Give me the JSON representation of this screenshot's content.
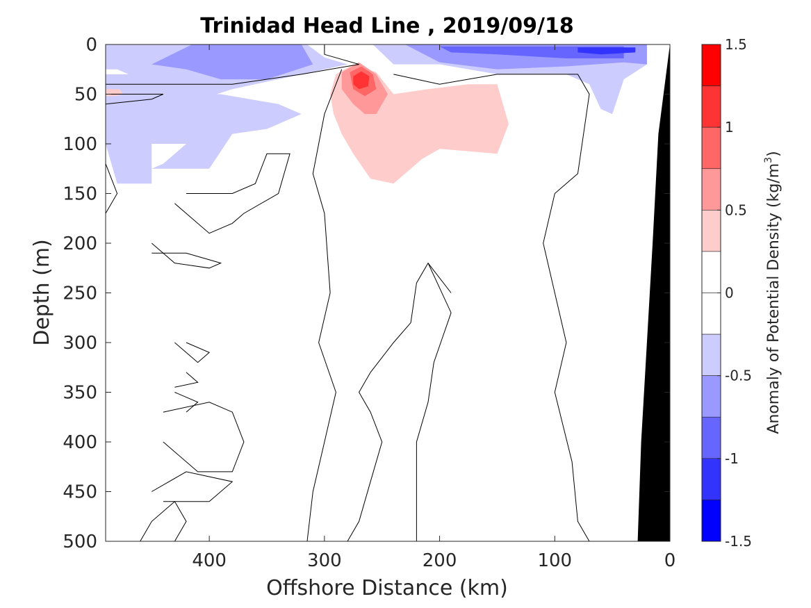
{
  "chart_data": {
    "type": "heatmap",
    "title": "Trinidad Head Line , 2019/09/18",
    "xlabel": "Offshore Distance (km)",
    "ylabel": "Depth (m)",
    "xlim": [
      490,
      0
    ],
    "ylim": [
      0,
      500
    ],
    "x_reversed": true,
    "y_reversed": true,
    "x_ticks": [
      "400",
      "300",
      "200",
      "100",
      "0"
    ],
    "y_ticks": [
      "0",
      "50",
      "100",
      "150",
      "200",
      "250",
      "300",
      "350",
      "400",
      "450",
      "500"
    ],
    "colorbar": {
      "label": "Anomaly of Potential Density (kg/m",
      "label_superscript": "3",
      "label_suffix": ")",
      "range": [
        -1.5,
        1.5
      ],
      "tick_values": [
        1.5,
        1,
        0.5,
        0,
        -0.5,
        -1,
        -1.5
      ],
      "tick_labels": [
        "1.5",
        "1",
        "0.5",
        "0",
        "-0.5",
        "-1",
        "-1.5"
      ],
      "levels": [
        {
          "from": 1.25,
          "to": 1.5,
          "color": "#ff0000"
        },
        {
          "from": 1.0,
          "to": 1.25,
          "color": "#ff3333"
        },
        {
          "from": 0.75,
          "to": 1.0,
          "color": "#ff6666"
        },
        {
          "from": 0.5,
          "to": 0.75,
          "color": "#ff9999"
        },
        {
          "from": 0.25,
          "to": 0.5,
          "color": "#ffcccc"
        },
        {
          "from": 0.0,
          "to": 0.25,
          "color": "#ffffff"
        },
        {
          "from": -0.25,
          "to": 0.0,
          "color": "#ffffff"
        },
        {
          "from": -0.5,
          "to": -0.25,
          "color": "#ccccff"
        },
        {
          "from": -0.75,
          "to": -0.5,
          "color": "#9999ff"
        },
        {
          "from": -1.0,
          "to": -0.75,
          "color": "#6666ff"
        },
        {
          "from": -1.25,
          "to": -1.0,
          "color": "#3333ff"
        },
        {
          "from": -1.5,
          "to": -1.25,
          "color": "#0000ff"
        }
      ]
    },
    "filled_regions": [
      {
        "name": "surface-negative-anomaly",
        "level": -0.5,
        "color": "#ccccff",
        "points": [
          [
            490,
            0
          ],
          [
            315,
            0
          ],
          [
            300,
            13
          ],
          [
            280,
            20
          ],
          [
            380,
            45
          ],
          [
            420,
            60
          ],
          [
            390,
            80
          ],
          [
            420,
            100
          ],
          [
            450,
            100
          ],
          [
            450,
            140
          ],
          [
            480,
            140
          ],
          [
            490,
            100
          ],
          [
            490,
            30
          ],
          [
            470,
            30
          ],
          [
            480,
            25
          ],
          [
            490,
            25
          ]
        ]
      },
      {
        "name": "subsurface-negative-anomaly",
        "level": -0.5,
        "color": "#ccccff",
        "points": [
          [
            490,
            60
          ],
          [
            440,
            60
          ],
          [
            420,
            100
          ],
          [
            440,
            120
          ],
          [
            450,
            125
          ],
          [
            400,
            125
          ],
          [
            380,
            90
          ],
          [
            350,
            85
          ],
          [
            320,
            70
          ],
          [
            340,
            60
          ],
          [
            390,
            50
          ],
          [
            490,
            50
          ]
        ]
      },
      {
        "name": "offshore-moderate-negative",
        "level": -0.75,
        "color": "#9999ff",
        "points": [
          [
            415,
            0
          ],
          [
            320,
            0
          ],
          [
            310,
            20
          ],
          [
            350,
            35
          ],
          [
            390,
            35
          ],
          [
            420,
            25
          ],
          [
            450,
            20
          ]
        ]
      },
      {
        "name": "nearshore-surface-negative",
        "level": -0.5,
        "color": "#ccccff",
        "points": [
          [
            258,
            0
          ],
          [
            20,
            0
          ],
          [
            20,
            20
          ],
          [
            40,
            35
          ],
          [
            50,
            70
          ],
          [
            60,
            65
          ],
          [
            70,
            40
          ],
          [
            90,
            30
          ],
          [
            150,
            30
          ],
          [
            200,
            20
          ],
          [
            240,
            20
          ]
        ]
      },
      {
        "name": "nearshore-moderate-negative",
        "level": -0.75,
        "color": "#9999ff",
        "points": [
          [
            230,
            0
          ],
          [
            20,
            0
          ],
          [
            20,
            20
          ],
          [
            40,
            18
          ],
          [
            90,
            22
          ],
          [
            150,
            25
          ],
          [
            200,
            18
          ]
        ]
      },
      {
        "name": "nearshore-strong-negative",
        "level": -1.0,
        "color": "#6666ff",
        "points": [
          [
            200,
            2
          ],
          [
            40,
            2
          ],
          [
            40,
            14
          ],
          [
            90,
            14
          ],
          [
            150,
            10
          ],
          [
            190,
            8
          ]
        ]
      },
      {
        "name": "nearshore-very-strong-negative",
        "level": -1.25,
        "color": "#3333ff",
        "points": [
          [
            80,
            3
          ],
          [
            30,
            3
          ],
          [
            30,
            8
          ],
          [
            60,
            10
          ],
          [
            80,
            8
          ]
        ]
      },
      {
        "name": "subsurface-positive-anomaly",
        "level": 0.5,
        "color": "#ffcccc",
        "points": [
          [
            290,
            30
          ],
          [
            275,
            20
          ],
          [
            255,
            28
          ],
          [
            240,
            50
          ],
          [
            210,
            45
          ],
          [
            175,
            40
          ],
          [
            150,
            40
          ],
          [
            140,
            80
          ],
          [
            150,
            110
          ],
          [
            200,
            105
          ],
          [
            215,
            115
          ],
          [
            240,
            140
          ],
          [
            260,
            135
          ],
          [
            275,
            110
          ],
          [
            285,
            90
          ],
          [
            292,
            70
          ],
          [
            295,
            50
          ]
        ]
      },
      {
        "name": "core-positive-anomaly",
        "level": 0.75,
        "color": "#ff9999",
        "points": [
          [
            285,
            28
          ],
          [
            270,
            18
          ],
          [
            255,
            30
          ],
          [
            245,
            50
          ],
          [
            255,
            70
          ],
          [
            265,
            70
          ],
          [
            275,
            60
          ],
          [
            285,
            45
          ]
        ]
      },
      {
        "name": "peak-positive-anomaly",
        "level": 1.0,
        "color": "#ff6666",
        "points": [
          [
            278,
            28
          ],
          [
            268,
            22
          ],
          [
            258,
            30
          ],
          [
            255,
            45
          ],
          [
            265,
            52
          ],
          [
            275,
            45
          ]
        ]
      },
      {
        "name": "peak-core-anomaly",
        "level": 1.25,
        "color": "#ff3333",
        "points": [
          [
            275,
            32
          ],
          [
            268,
            27
          ],
          [
            261,
            32
          ],
          [
            262,
            42
          ],
          [
            270,
            45
          ],
          [
            275,
            40
          ]
        ]
      },
      {
        "name": "offshore-small-positive",
        "level": 0.5,
        "color": "#ffcccc",
        "points": [
          [
            490,
            45
          ],
          [
            478,
            45
          ],
          [
            475,
            50
          ],
          [
            482,
            52
          ],
          [
            490,
            52
          ]
        ]
      }
    ],
    "contour_lines": [
      {
        "name": "zero-contour-1",
        "points": [
          [
            300,
            0
          ],
          [
            300,
            10
          ],
          [
            270,
            20
          ],
          [
            320,
            30
          ],
          [
            380,
            40
          ],
          [
            420,
            40
          ],
          [
            490,
            40
          ]
        ]
      },
      {
        "name": "zero-contour-2",
        "points": [
          [
            490,
            50
          ],
          [
            440,
            50
          ],
          [
            450,
            55
          ],
          [
            490,
            60
          ]
        ]
      },
      {
        "name": "zero-contour-3",
        "points": [
          [
            490,
            120
          ],
          [
            480,
            150
          ],
          [
            490,
            170
          ],
          [
            490,
            200
          ]
        ]
      },
      {
        "name": "zero-contour-4",
        "points": [
          [
            420,
            150
          ],
          [
            380,
            150
          ],
          [
            360,
            140
          ],
          [
            350,
            110
          ],
          [
            330,
            110
          ],
          [
            340,
            150
          ],
          [
            370,
            170
          ],
          [
            380,
            180
          ],
          [
            400,
            190
          ],
          [
            430,
            160
          ]
        ]
      },
      {
        "name": "zero-contour-5",
        "points": [
          [
            450,
            200
          ],
          [
            430,
            220
          ],
          [
            400,
            225
          ],
          [
            390,
            220
          ],
          [
            420,
            210
          ],
          [
            450,
            210
          ]
        ]
      },
      {
        "name": "zero-contour-6",
        "points": [
          [
            285,
            25
          ],
          [
            300,
            70
          ],
          [
            310,
            130
          ],
          [
            300,
            170
          ],
          [
            295,
            250
          ],
          [
            305,
            300
          ],
          [
            290,
            350
          ],
          [
            300,
            400
          ],
          [
            310,
            450
          ],
          [
            315,
            500
          ]
        ]
      },
      {
        "name": "zero-contour-7",
        "points": [
          [
            240,
            30
          ],
          [
            200,
            40
          ],
          [
            150,
            30
          ],
          [
            80,
            30
          ],
          [
            70,
            50
          ],
          [
            80,
            130
          ],
          [
            100,
            150
          ],
          [
            110,
            200
          ],
          [
            100,
            250
          ],
          [
            90,
            300
          ],
          [
            100,
            350
          ],
          [
            85,
            420
          ],
          [
            80,
            480
          ],
          [
            70,
            500
          ]
        ]
      },
      {
        "name": "zero-contour-8",
        "points": [
          [
            190,
            250
          ],
          [
            210,
            220
          ],
          [
            220,
            240
          ],
          [
            225,
            280
          ],
          [
            240,
            300
          ],
          [
            260,
            330
          ],
          [
            270,
            350
          ],
          [
            260,
            370
          ],
          [
            250,
            400
          ],
          [
            260,
            440
          ],
          [
            270,
            480
          ],
          [
            280,
            500
          ]
        ]
      },
      {
        "name": "zero-contour-9",
        "points": [
          [
            210,
            220
          ],
          [
            190,
            270
          ],
          [
            205,
            320
          ],
          [
            210,
            360
          ],
          [
            220,
            400
          ],
          [
            220,
            450
          ],
          [
            220,
            500
          ]
        ]
      },
      {
        "name": "zero-contour-10",
        "points": [
          [
            420,
            300
          ],
          [
            400,
            310
          ],
          [
            410,
            320
          ],
          [
            430,
            300
          ]
        ]
      },
      {
        "name": "zero-contour-11",
        "points": [
          [
            420,
            330
          ],
          [
            410,
            340
          ],
          [
            430,
            345
          ]
        ]
      },
      {
        "name": "zero-contour-12",
        "points": [
          [
            430,
            350
          ],
          [
            410,
            360
          ],
          [
            420,
            370
          ]
        ]
      },
      {
        "name": "zero-contour-13",
        "points": [
          [
            440,
            370
          ],
          [
            400,
            360
          ],
          [
            380,
            370
          ],
          [
            370,
            400
          ],
          [
            380,
            430
          ],
          [
            410,
            430
          ],
          [
            440,
            400
          ]
        ]
      },
      {
        "name": "zero-contour-14",
        "points": [
          [
            450,
            450
          ],
          [
            420,
            430
          ],
          [
            380,
            440
          ],
          [
            400,
            460
          ],
          [
            440,
            460
          ]
        ]
      },
      {
        "name": "zero-contour-15",
        "points": [
          [
            460,
            500
          ],
          [
            450,
            480
          ],
          [
            430,
            460
          ],
          [
            420,
            480
          ],
          [
            430,
            500
          ]
        ]
      }
    ],
    "bathymetry": {
      "name": "seafloor",
      "color": "#000000",
      "points": [
        [
          0,
          0
        ],
        [
          10,
          90
        ],
        [
          15,
          200
        ],
        [
          20,
          300
        ],
        [
          25,
          400
        ],
        [
          28,
          500
        ],
        [
          0,
          500
        ]
      ]
    }
  }
}
